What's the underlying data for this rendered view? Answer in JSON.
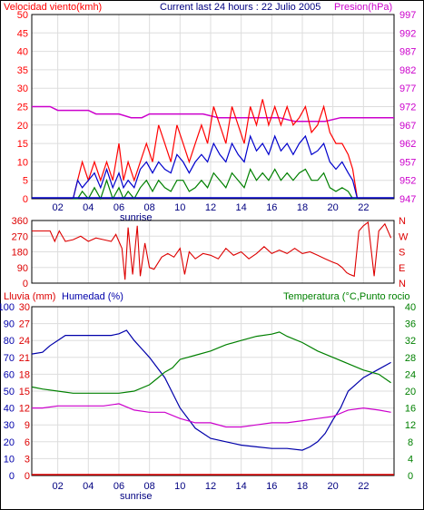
{
  "header": {
    "left_label": "Velocidad viento(kmh)",
    "center_label": "Current last 24 hours : 22 Julio 2005",
    "right_label": "Presion(hPa)"
  },
  "colors": {
    "wind_max": "#ff0000",
    "wind_avg": "#0000cc",
    "wind_min": "#008000",
    "pressure": "#cc00cc",
    "direction": "#dd0000",
    "rain": "#dd0000",
    "humidity": "#0000aa",
    "temperature": "#008000",
    "dewpoint": "#cc00cc"
  },
  "x_ticks": [
    "02",
    "04",
    "06",
    "08",
    "10",
    "12",
    "14",
    "16",
    "18",
    "20",
    "22"
  ],
  "sunrise_label": "sunrise",
  "direction_labels": [
    "N",
    "W",
    "S",
    "E",
    "N"
  ],
  "bottom_header": {
    "rain_label": "Lluvia (mm)",
    "humidity_label": "Humedad (%)",
    "temp_label": "Temperatura (°C,Punto rocio"
  },
  "chart_data": [
    {
      "type": "line",
      "name": "wind-pressure",
      "x_range": [
        0.3,
        24
      ],
      "y_left_ticks": [
        "0",
        "5",
        "10",
        "15",
        "20",
        "25",
        "30",
        "35",
        "40",
        "45",
        "50"
      ],
      "y_left_range": [
        0,
        50
      ],
      "y_right_ticks": [
        "947",
        "952",
        "957",
        "962",
        "967",
        "972",
        "977",
        "982",
        "987",
        "992",
        "997"
      ],
      "y_right_range": [
        947,
        997
      ],
      "series": [
        {
          "key": "pressure",
          "axis": "right",
          "x": [
            0.3,
            1.5,
            2.0,
            3.0,
            4.0,
            4.5,
            5.5,
            6.0,
            6.8,
            7.5,
            8.0,
            10.0,
            11.5,
            12.5,
            14.0,
            15.5,
            16.5,
            17.5,
            18.5,
            19.5,
            20.5,
            22.0,
            24.0
          ],
          "y": [
            972,
            972,
            971,
            971,
            971,
            970,
            970,
            970,
            969,
            969,
            970,
            970,
            970,
            969,
            969,
            969,
            969,
            968,
            968,
            968,
            969,
            969,
            969
          ]
        },
        {
          "key": "wind_max",
          "axis": "left",
          "x": [
            3.0,
            3.3,
            3.6,
            4.0,
            4.4,
            4.8,
            5.2,
            5.6,
            6.0,
            6.3,
            6.6,
            7.0,
            7.4,
            7.8,
            8.2,
            8.6,
            9.0,
            9.4,
            9.8,
            10.2,
            10.6,
            11.0,
            11.4,
            11.8,
            12.2,
            12.6,
            13.0,
            13.4,
            13.8,
            14.2,
            14.6,
            15.0,
            15.4,
            15.8,
            16.2,
            16.6,
            17.0,
            17.4,
            17.8,
            18.2,
            18.6,
            19.0,
            19.4,
            19.8,
            20.2,
            20.6,
            21.0,
            21.3,
            21.6
          ],
          "y": [
            0,
            5,
            10,
            5,
            10,
            5,
            10,
            5,
            15,
            5,
            10,
            5,
            10,
            15,
            10,
            20,
            15,
            10,
            20,
            15,
            10,
            15,
            20,
            15,
            25,
            20,
            15,
            25,
            20,
            15,
            25,
            20,
            27,
            20,
            25,
            20,
            25,
            20,
            22,
            25,
            18,
            20,
            25,
            18,
            15,
            15,
            12,
            8,
            0
          ]
        },
        {
          "key": "wind_avg",
          "axis": "left",
          "x": [
            3.0,
            3.3,
            3.6,
            4.0,
            4.4,
            4.8,
            5.2,
            5.6,
            6.0,
            6.3,
            6.6,
            7.0,
            7.4,
            7.8,
            8.2,
            8.6,
            9.0,
            9.4,
            9.8,
            10.2,
            10.6,
            11.0,
            11.4,
            11.8,
            12.2,
            12.6,
            13.0,
            13.4,
            13.8,
            14.2,
            14.6,
            15.0,
            15.4,
            15.8,
            16.2,
            16.6,
            17.0,
            17.4,
            17.8,
            18.2,
            18.6,
            19.0,
            19.4,
            19.8,
            20.2,
            20.6,
            21.0,
            21.3,
            21.6
          ],
          "y": [
            0,
            5,
            3,
            5,
            7,
            3,
            8,
            3,
            7,
            3,
            5,
            3,
            8,
            10,
            7,
            10,
            8,
            7,
            12,
            10,
            7,
            10,
            12,
            10,
            15,
            12,
            10,
            15,
            12,
            10,
            17,
            13,
            15,
            12,
            17,
            13,
            15,
            12,
            15,
            17,
            12,
            13,
            15,
            10,
            8,
            10,
            7,
            5,
            0
          ]
        },
        {
          "key": "wind_min",
          "axis": "left",
          "x": [
            3.0,
            3.3,
            3.6,
            4.0,
            4.4,
            4.8,
            5.2,
            5.6,
            6.0,
            6.3,
            6.6,
            7.0,
            7.4,
            7.8,
            8.2,
            8.6,
            9.0,
            9.4,
            9.8,
            10.2,
            10.6,
            11.0,
            11.4,
            11.8,
            12.2,
            12.6,
            13.0,
            13.4,
            13.8,
            14.2,
            14.6,
            15.0,
            15.4,
            15.8,
            16.2,
            16.6,
            17.0,
            17.4,
            17.8,
            18.2,
            18.6,
            19.0,
            19.4,
            19.8,
            20.2,
            20.6,
            21.0,
            21.3,
            21.6
          ],
          "y": [
            0,
            0,
            2,
            0,
            3,
            0,
            5,
            0,
            3,
            0,
            2,
            0,
            3,
            5,
            2,
            5,
            3,
            2,
            5,
            5,
            2,
            3,
            5,
            3,
            7,
            5,
            3,
            7,
            5,
            3,
            8,
            5,
            7,
            5,
            8,
            5,
            7,
            5,
            7,
            8,
            5,
            5,
            7,
            3,
            2,
            3,
            2,
            0,
            0
          ]
        }
      ]
    },
    {
      "type": "line",
      "name": "wind-direction",
      "x_range": [
        0.3,
        24
      ],
      "y_ticks": [
        "360",
        "270",
        "180",
        "90",
        "0"
      ],
      "y_range": [
        0,
        360
      ],
      "series": [
        {
          "key": "direction",
          "x": [
            0.3,
            1.0,
            1.5,
            1.8,
            2.1,
            2.5,
            3.0,
            3.5,
            4.0,
            4.5,
            5.0,
            5.5,
            5.8,
            6.2,
            6.4,
            6.6,
            6.9,
            7.2,
            7.4,
            7.7,
            8.0,
            8.3,
            8.8,
            9.2,
            9.6,
            10.0,
            10.3,
            10.6,
            11.0,
            11.5,
            12.0,
            12.5,
            13.0,
            13.5,
            14.0,
            14.5,
            15.0,
            15.5,
            16.0,
            16.5,
            17.0,
            17.5,
            18.0,
            18.5,
            19.0,
            19.5,
            20.0,
            20.3,
            20.6,
            20.9,
            21.1,
            21.4,
            21.7,
            22.0,
            22.3,
            22.7,
            23.0,
            23.4,
            23.8
          ],
          "y": [
            300,
            300,
            300,
            240,
            300,
            240,
            250,
            270,
            240,
            260,
            250,
            240,
            280,
            200,
            20,
            320,
            50,
            330,
            40,
            230,
            90,
            80,
            150,
            170,
            150,
            200,
            50,
            180,
            140,
            170,
            160,
            140,
            200,
            160,
            180,
            140,
            170,
            210,
            170,
            190,
            170,
            200,
            170,
            180,
            160,
            140,
            120,
            110,
            90,
            60,
            50,
            40,
            300,
            330,
            350,
            40,
            300,
            340,
            260
          ]
        }
      ]
    },
    {
      "type": "line",
      "name": "rain-humidity-temperature",
      "x_range": [
        0.3,
        24
      ],
      "y_left1_ticks": [
        "100",
        "90",
        "80",
        "70",
        "60",
        "50",
        "40",
        "30",
        "20",
        "10",
        "0"
      ],
      "y_left2_ticks": [
        "30",
        "27",
        "24",
        "21",
        "18",
        "15",
        "12",
        "9",
        "6",
        "3",
        "0"
      ],
      "y_right_ticks": [
        "40",
        "36",
        "32",
        "28",
        "24",
        "20",
        "16",
        "12",
        "8",
        "4",
        "0"
      ],
      "y_left_range": [
        0,
        100
      ],
      "y_right_range": [
        0,
        40
      ],
      "series": [
        {
          "key": "humidity",
          "axis": "left",
          "x": [
            0.3,
            1.0,
            1.5,
            2.0,
            2.5,
            3.0,
            4.0,
            5.0,
            5.5,
            6.0,
            6.5,
            7.0,
            7.5,
            8.0,
            9.0,
            10.0,
            11.0,
            12.0,
            13.0,
            14.0,
            15.0,
            16.0,
            17.0,
            18.0,
            18.5,
            19.0,
            19.5,
            20.0,
            20.5,
            21.0,
            22.0,
            23.0,
            23.8
          ],
          "y": [
            72,
            73,
            77,
            80,
            83,
            83,
            83,
            83,
            83,
            84,
            86,
            80,
            75,
            70,
            58,
            40,
            28,
            22,
            20,
            18,
            17,
            16,
            16,
            15,
            17,
            20,
            25,
            33,
            40,
            50,
            58,
            63,
            67
          ]
        },
        {
          "key": "temperature",
          "axis": "right",
          "x": [
            0.3,
            1.0,
            2.0,
            3.0,
            4.0,
            5.0,
            6.0,
            7.0,
            8.0,
            8.5,
            9.0,
            9.5,
            10.0,
            11.0,
            12.0,
            13.0,
            14.0,
            15.0,
            16.0,
            16.5,
            17.0,
            18.0,
            19.0,
            20.0,
            21.0,
            22.0,
            23.0,
            23.8
          ],
          "y": [
            21,
            20.5,
            20,
            19.5,
            19.5,
            19.5,
            19.5,
            20,
            21.5,
            23,
            24.5,
            25.5,
            27.5,
            28.5,
            29.5,
            31,
            32,
            33,
            33.5,
            34,
            33,
            31.5,
            29.5,
            28,
            26.5,
            25,
            24,
            22
          ]
        },
        {
          "key": "dewpoint",
          "axis": "right",
          "x": [
            0.3,
            1.0,
            2.0,
            3.0,
            4.0,
            5.0,
            6.0,
            7.0,
            8.0,
            9.0,
            10.0,
            11.0,
            12.0,
            13.0,
            14.0,
            15.0,
            16.0,
            17.0,
            18.0,
            19.0,
            20.0,
            21.0,
            22.0,
            23.0,
            23.8
          ],
          "y": [
            16,
            16,
            16.5,
            16.5,
            16.5,
            16.5,
            17,
            15.5,
            15,
            15,
            13.5,
            12.5,
            12.5,
            11.5,
            11.5,
            12,
            12.5,
            12.5,
            13,
            13.5,
            14,
            15.5,
            16,
            15.5,
            15
          ]
        },
        {
          "key": "rain",
          "axis": "left",
          "x": [
            0.3,
            24
          ],
          "y": [
            0,
            0
          ]
        }
      ]
    }
  ]
}
